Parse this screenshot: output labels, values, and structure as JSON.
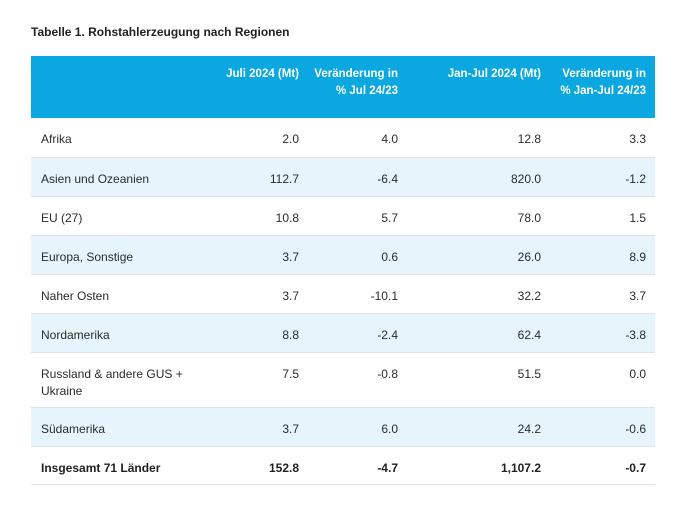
{
  "title": "Tabelle 1. Rohstahlerzeugung nach Regionen",
  "headers": [
    "",
    "Juli 2024 (Mt)",
    "Veränderung in % Jul 24/23",
    "Jan-Jul 2024 (Mt)",
    "Veränderung in % Jan-Jul 24/23"
  ],
  "rows": [
    {
      "region": "Afrika",
      "jul": "2.0",
      "chg_jul": "4.0",
      "janjul": "12.8",
      "chg_janjul": "3.3"
    },
    {
      "region": "Asien und Ozeanien",
      "jul": "112.7",
      "chg_jul": "-6.4",
      "janjul": "820.0",
      "chg_janjul": "-1.2"
    },
    {
      "region": "EU (27)",
      "jul": "10.8",
      "chg_jul": "5.7",
      "janjul": "78.0",
      "chg_janjul": "1.5"
    },
    {
      "region": "Europa, Sonstige",
      "jul": "3.7",
      "chg_jul": "0.6",
      "janjul": "26.0",
      "chg_janjul": "8.9"
    },
    {
      "region": "Naher Osten",
      "jul": "3.7",
      "chg_jul": "-10.1",
      "janjul": "32.2",
      "chg_janjul": "3.7"
    },
    {
      "region": "Nordamerika",
      "jul": "8.8",
      "chg_jul": "-2.4",
      "janjul": "62.4",
      "chg_janjul": "-3.8"
    },
    {
      "region": "Russland & andere GUS + Ukraine",
      "jul": "7.5",
      "chg_jul": "-0.8",
      "janjul": "51.5",
      "chg_janjul": "0.0"
    },
    {
      "region": "Südamerika",
      "jul": "3.7",
      "chg_jul": "6.0",
      "janjul": "24.2",
      "chg_janjul": "-0.6"
    }
  ],
  "total": {
    "region": "Insgesamt 71 Länder",
    "jul": "152.8",
    "chg_jul": "-4.7",
    "janjul": "1,107.2",
    "chg_janjul": "-0.7"
  },
  "colors": {
    "header_bg": "#0aa7e0",
    "alt_row_bg": "#e6f5fb"
  }
}
